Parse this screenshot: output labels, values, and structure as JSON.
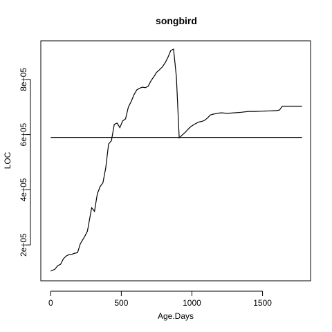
{
  "chart_data": {
    "type": "line",
    "title": "songbird",
    "xlabel": "Age.Days",
    "ylabel": "LOC",
    "xlim": [
      -70,
      1840
    ],
    "ylim": [
      70000,
      940000
    ],
    "xticks": [
      0,
      500,
      1000,
      1500
    ],
    "xtick_labels": [
      "0",
      "500",
      "1000",
      "1500"
    ],
    "yticks": [
      200000,
      400000,
      600000,
      800000
    ],
    "ytick_labels": [
      "2e+05",
      "4e+05",
      "6e+05",
      "8e+05"
    ],
    "grid": false,
    "legend": "none",
    "series": [
      {
        "x": [
          0,
          30,
          50,
          70,
          90,
          110,
          130,
          150,
          170,
          190,
          210,
          240,
          260,
          290,
          310,
          330,
          350,
          370,
          390,
          410,
          430,
          450,
          470,
          490,
          510,
          530,
          550,
          570,
          590,
          610,
          630,
          650,
          670,
          690,
          710,
          730,
          750,
          770,
          790,
          810,
          830,
          850,
          870,
          890,
          910,
          930,
          950,
          970,
          990,
          1010,
          1030,
          1050,
          1070,
          1090,
          1110,
          1130,
          1150,
          1170,
          1190,
          1210,
          1250,
          1300,
          1350,
          1400,
          1450,
          1500,
          1550,
          1600,
          1620,
          1640,
          1700,
          1780
        ],
        "y": [
          105000,
          112000,
          125000,
          130000,
          150000,
          160000,
          165000,
          166000,
          170000,
          172000,
          205000,
          230000,
          250000,
          335000,
          322000,
          385000,
          412000,
          425000,
          480000,
          566000,
          578000,
          637000,
          642000,
          625000,
          650000,
          657000,
          700000,
          720000,
          745000,
          762000,
          768000,
          772000,
          770000,
          775000,
          795000,
          810000,
          826000,
          835000,
          845000,
          860000,
          880000,
          905000,
          910000,
          810000,
          588000,
          598000,
          607000,
          618000,
          628000,
          635000,
          641000,
          646000,
          648000,
          652000,
          660000,
          671000,
          674000,
          676000,
          678000,
          679000,
          677000,
          679000,
          681000,
          684000,
          684000,
          685000,
          686000,
          687000,
          689000,
          703000,
          703000,
          703000
        ]
      },
      {
        "x": [
          0,
          1780
        ],
        "y": [
          590000,
          590000
        ]
      }
    ]
  }
}
